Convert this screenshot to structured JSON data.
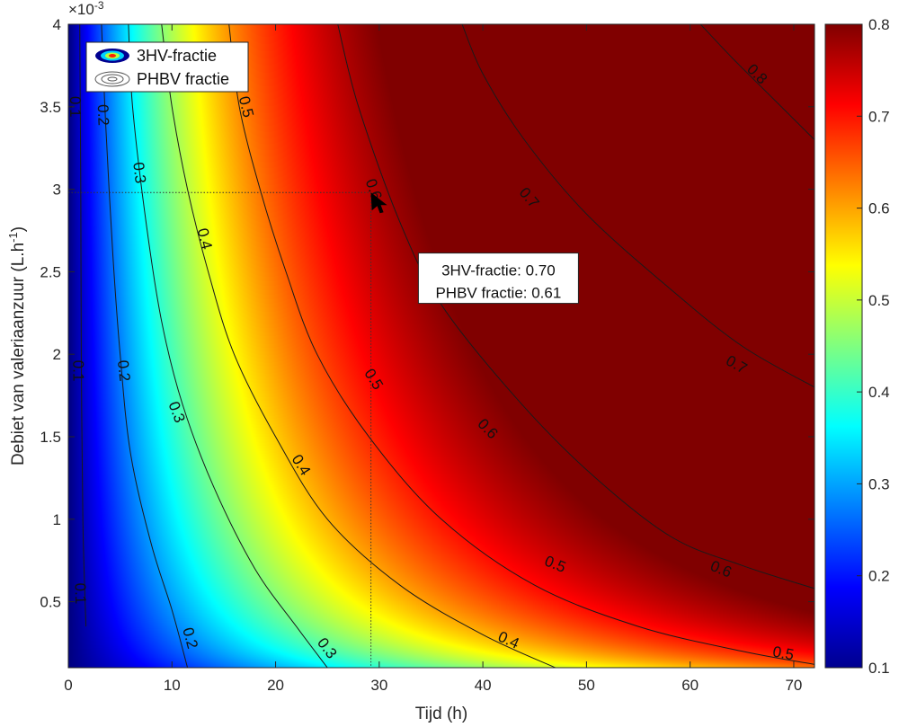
{
  "chart_data": {
    "type": "heatmap",
    "title": "",
    "xlabel": "Tijd  (h)",
    "ylabel_main": "Debiet van valeriaanzuur (L.h",
    "ylabel_sup": "-1",
    "ylabel_close": ")",
    "y_exponent_base": "×10",
    "y_exponent_power": "-3",
    "xlim": [
      0,
      72
    ],
    "ylim": [
      0.1,
      4
    ],
    "x_ticks": [
      0,
      10,
      20,
      30,
      40,
      50,
      60,
      70
    ],
    "x_tick_labels": [
      "0",
      "10",
      "20",
      "30",
      "40",
      "50",
      "60",
      "70"
    ],
    "y_ticks": [
      0.5,
      1,
      1.5,
      2,
      2.5,
      3,
      3.5,
      4
    ],
    "y_tick_labels": [
      "0.5",
      "1",
      "1.5",
      "2",
      "2.5",
      "3",
      "3.5",
      "4"
    ],
    "colorbar": {
      "range": [
        0.1,
        0.8
      ],
      "ticks": [
        0.1,
        0.2,
        0.3,
        0.4,
        0.5,
        0.6,
        0.7,
        0.8
      ],
      "tick_labels": [
        "0.1",
        "0.2",
        "0.3",
        "0.4",
        "0.5",
        "0.6",
        "0.7",
        "0.8"
      ],
      "colormap": "jet"
    },
    "legend": {
      "placement": "top-left",
      "entries": [
        "3HV-fractie",
        "PHBV fractie"
      ]
    },
    "contour_lines": [
      {
        "level": 0.1,
        "label": "0.1",
        "points": [
          [
            1.7,
            0.35
          ],
          [
            1.4,
            1
          ],
          [
            1.25,
            2
          ],
          [
            1.2,
            3
          ],
          [
            1.1,
            4
          ]
        ],
        "label_at": [
          [
            1.2,
            0.55
          ],
          [
            1.0,
            1.9
          ],
          [
            0.7,
            3.5
          ]
        ]
      },
      {
        "level": 0.2,
        "label": "0.2",
        "points": [
          [
            11.5,
            0.1
          ],
          [
            10,
            0.45
          ],
          [
            8,
            0.85
          ],
          [
            6,
            1.4
          ],
          [
            5,
            2
          ],
          [
            4.3,
            2.6
          ],
          [
            3.6,
            3.4
          ],
          [
            3.2,
            4
          ]
        ],
        "label_at": [
          [
            11.8,
            0.28
          ],
          [
            5.4,
            1.9
          ],
          [
            3.4,
            3.45
          ]
        ]
      },
      {
        "level": 0.3,
        "label": "0.3",
        "points": [
          [
            25,
            0.1
          ],
          [
            22,
            0.35
          ],
          [
            18,
            0.7
          ],
          [
            14,
            1.2
          ],
          [
            11,
            1.7
          ],
          [
            9,
            2.2
          ],
          [
            7.5,
            2.8
          ],
          [
            6.2,
            3.5
          ],
          [
            5.8,
            4
          ]
        ],
        "label_at": [
          [
            25,
            0.22
          ],
          [
            10.5,
            1.65
          ],
          [
            6.9,
            3.1
          ]
        ]
      },
      {
        "level": 0.4,
        "label": "0.4",
        "points": [
          [
            47,
            0.1
          ],
          [
            40,
            0.3
          ],
          [
            32,
            0.6
          ],
          [
            25,
            1
          ],
          [
            20,
            1.5
          ],
          [
            16,
            2
          ],
          [
            13.5,
            2.5
          ],
          [
            11.5,
            3
          ],
          [
            10,
            3.5
          ],
          [
            9,
            4
          ]
        ],
        "label_at": [
          [
            42.5,
            0.27
          ],
          [
            22.5,
            1.33
          ],
          [
            13.2,
            2.7
          ]
        ]
      },
      {
        "level": 0.5,
        "label": "0.5",
        "points": [
          [
            72,
            0.12
          ],
          [
            65,
            0.2
          ],
          [
            55,
            0.35
          ],
          [
            45,
            0.6
          ],
          [
            36,
            1
          ],
          [
            29,
            1.5
          ],
          [
            24,
            2
          ],
          [
            21,
            2.5
          ],
          [
            18.5,
            3
          ],
          [
            16.5,
            3.5
          ],
          [
            15.5,
            4
          ]
        ],
        "label_at": [
          [
            69,
            0.19
          ],
          [
            47,
            0.73
          ],
          [
            29.5,
            1.85
          ],
          [
            17.2,
            3.5
          ]
        ]
      },
      {
        "level": 0.6,
        "label": "0.6",
        "points": [
          [
            72,
            0.58
          ],
          [
            65,
            0.72
          ],
          [
            58,
            0.9
          ],
          [
            50,
            1.3
          ],
          [
            43,
            1.75
          ],
          [
            36,
            2.3
          ],
          [
            32,
            2.8
          ],
          [
            28,
            3.5
          ],
          [
            26,
            4
          ]
        ],
        "label_at": [
          [
            63,
            0.7
          ],
          [
            40.5,
            1.55
          ],
          [
            29.5,
            3.0
          ]
        ]
      },
      {
        "level": 0.7,
        "label": "0.7",
        "points": [
          [
            72,
            1.8
          ],
          [
            65,
            2.05
          ],
          [
            58,
            2.4
          ],
          [
            50,
            2.85
          ],
          [
            44,
            3.3
          ],
          [
            40,
            3.7
          ],
          [
            38,
            4
          ]
        ],
        "label_at": [
          [
            64.5,
            1.94
          ],
          [
            44.5,
            2.95
          ]
        ]
      },
      {
        "level": 0.8,
        "label": "0.8",
        "points": [
          [
            72,
            3.3
          ],
          [
            68,
            3.55
          ],
          [
            64,
            3.8
          ],
          [
            61,
            4
          ]
        ],
        "label_at": [
          [
            66.5,
            3.7
          ]
        ]
      }
    ],
    "marker": {
      "x": 29.2,
      "y": 2.98
    },
    "crosshair": {
      "x": 29.2,
      "y": 2.98
    },
    "annotation": {
      "line1": "3HV-fractie: 0.70",
      "line2": "PHBV fractie: 0.61",
      "at": [
        41.5,
        2.45
      ]
    }
  }
}
